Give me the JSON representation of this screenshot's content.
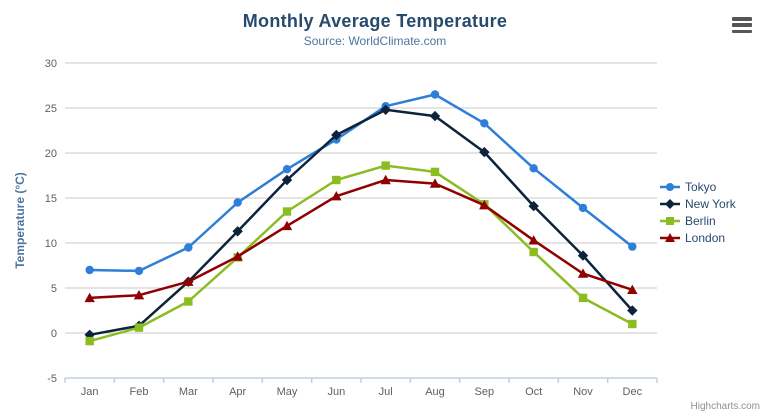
{
  "header": {
    "title": "Monthly Average Temperature",
    "subtitle": "Source: WorldClimate.com"
  },
  "menu": {
    "icon": "hamburger-menu-icon"
  },
  "credits": {
    "text": "Highcharts.com"
  },
  "colors": {
    "title": "#274b6d",
    "subtitle": "#4d759e",
    "axis_label": "#606060",
    "axis_title": "#4d759e",
    "grid_line": "#c9c9c9",
    "axis_line": "#c0d0e0",
    "legend_text": "#274b6d",
    "credit": "#909090"
  },
  "chart_data": {
    "type": "line",
    "title": "Monthly Average Temperature",
    "subtitle": "Source: WorldClimate.com",
    "xlabel": "",
    "ylabel": "Temperature (°C)",
    "categories": [
      "Jan",
      "Feb",
      "Mar",
      "Apr",
      "May",
      "Jun",
      "Jul",
      "Aug",
      "Sep",
      "Oct",
      "Nov",
      "Dec"
    ],
    "ylim": [
      -5,
      30
    ],
    "ytick_step": 5,
    "grid": "horizontal",
    "legend_position": "right",
    "series": [
      {
        "name": "Tokyo",
        "color": "#2f7ed8",
        "marker": "circle",
        "values": [
          7.0,
          6.9,
          9.5,
          14.5,
          18.2,
          21.5,
          25.2,
          26.5,
          23.3,
          18.3,
          13.9,
          9.6
        ]
      },
      {
        "name": "New York",
        "color": "#0d233a",
        "marker": "diamond",
        "values": [
          -0.2,
          0.8,
          5.7,
          11.3,
          17.0,
          22.0,
          24.8,
          24.1,
          20.1,
          14.1,
          8.6,
          2.5
        ]
      },
      {
        "name": "Berlin",
        "color": "#8bbc21",
        "marker": "square",
        "values": [
          -0.9,
          0.6,
          3.5,
          8.4,
          13.5,
          17.0,
          18.6,
          17.9,
          14.3,
          9.0,
          3.9,
          1.0
        ]
      },
      {
        "name": "London",
        "color": "#910000",
        "marker": "triangle",
        "values": [
          3.9,
          4.2,
          5.7,
          8.5,
          11.9,
          15.2,
          17.0,
          16.6,
          14.2,
          10.3,
          6.6,
          4.8
        ]
      }
    ]
  }
}
